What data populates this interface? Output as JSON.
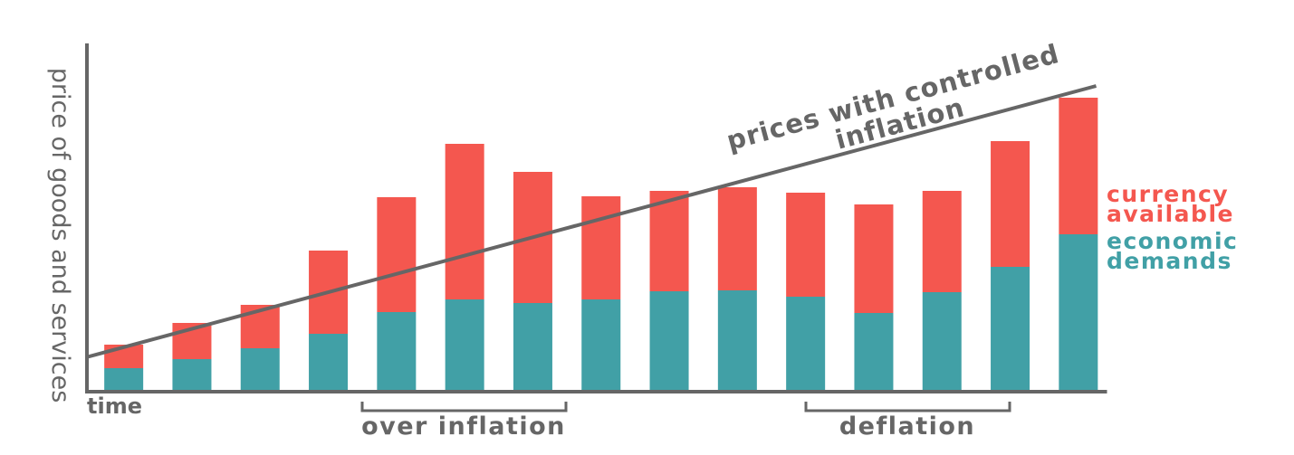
{
  "chart_data": {
    "type": "stacked-bar",
    "y_label": "price of goods and services",
    "x_label": "time",
    "categories": [
      null,
      null,
      null,
      null,
      null,
      null,
      null,
      null,
      null,
      null,
      null,
      null,
      null,
      null,
      null
    ],
    "series": [
      {
        "name": "economic demands",
        "color": "#41a0a6",
        "values": [
          25,
          35,
          47,
          63,
          87,
          101,
          97,
          101,
          110,
          111,
          104,
          86,
          109,
          137,
          173
        ]
      },
      {
        "name": "currency available",
        "color": "#f4574f",
        "values": [
          26,
          40,
          48,
          92,
          127,
          172,
          145,
          114,
          111,
          114,
          115,
          120,
          112,
          139,
          151
        ]
      }
    ],
    "ylim": [
      0,
      384
    ],
    "trend": {
      "label": "prices with controlled inflation",
      "color": "#666666",
      "values": [
        37,
        337
      ]
    },
    "annotations": [
      "over inflation",
      "deflation"
    ]
  }
}
